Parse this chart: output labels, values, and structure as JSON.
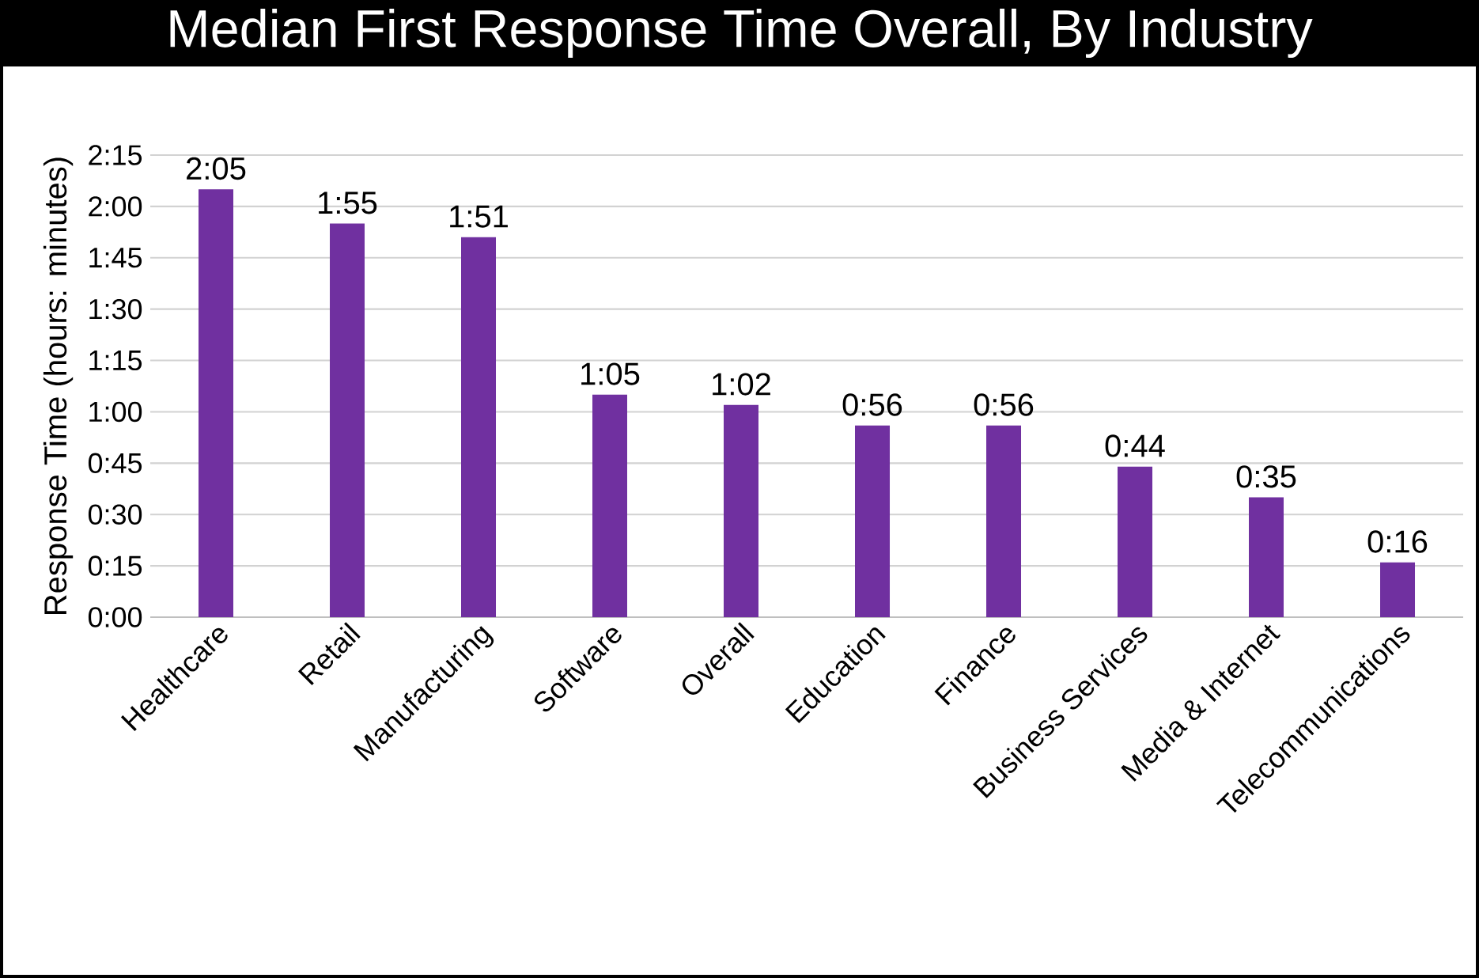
{
  "chart_data": {
    "type": "bar",
    "title": "Median First Response Time Overall, By Industry",
    "ylabel": "Response Time (hours: minutes)",
    "categories": [
      "Healthcare",
      "Retail",
      "Manufacturing",
      "Software",
      "Overall",
      "Education",
      "Finance",
      "Business Services",
      "Media & Internet",
      "Telecommunications"
    ],
    "values": [
      125,
      115,
      111,
      65,
      62,
      56,
      56,
      44,
      35,
      16
    ],
    "value_labels": [
      "2:05",
      "1:55",
      "1:51",
      "1:05",
      "1:02",
      "0:56",
      "0:56",
      "0:44",
      "0:35",
      "0:16"
    ],
    "color": "#7030a0",
    "ylim": [
      0,
      135
    ],
    "yticks": [
      {
        "value": 0,
        "label": "0:00"
      },
      {
        "value": 15,
        "label": "0:15"
      },
      {
        "value": 30,
        "label": "0:30"
      },
      {
        "value": 45,
        "label": "0:45"
      },
      {
        "value": 60,
        "label": "1:00"
      },
      {
        "value": 75,
        "label": "1:15"
      },
      {
        "value": 90,
        "label": "1:30"
      },
      {
        "value": 105,
        "label": "1:45"
      },
      {
        "value": 120,
        "label": "2:00"
      },
      {
        "value": 135,
        "label": "2:15"
      }
    ],
    "grid": "y"
  }
}
